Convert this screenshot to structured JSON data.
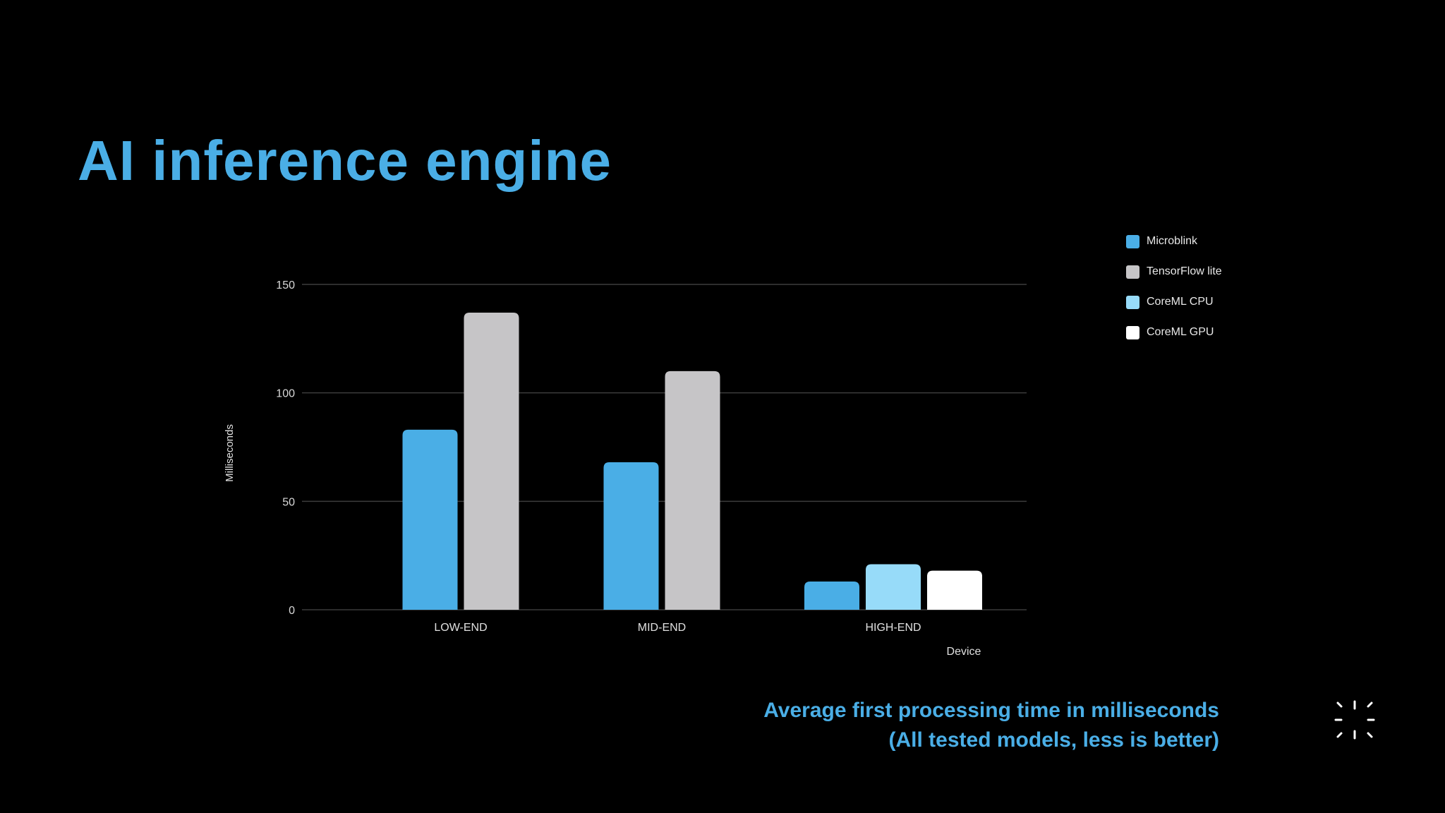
{
  "title": "AI inference engine",
  "caption": {
    "line1": "Average first processing time in milliseconds",
    "line2": "(All tested models, less is better)"
  },
  "colors": {
    "accent": "#4aaee6",
    "background": "#000000"
  },
  "logo_icon": "sparkle-burst-icon",
  "chart_data": {
    "type": "bar",
    "xlabel": "Device",
    "ylabel": "Milliseconds",
    "ylim": [
      0,
      150
    ],
    "yticks": [
      0,
      50,
      100,
      150
    ],
    "grid": true,
    "legend_position": "top-right",
    "categories": [
      "LOW-END",
      "MID-END",
      "HIGH-END"
    ],
    "series": [
      {
        "name": "Microblink",
        "color": "#4aaee6",
        "values": [
          83,
          68,
          13
        ]
      },
      {
        "name": "TensorFlow lite",
        "color": "#c6c5c7",
        "values": [
          137,
          110,
          null
        ]
      },
      {
        "name": "CoreML CPU",
        "color": "#97dbf9",
        "values": [
          null,
          null,
          21
        ]
      },
      {
        "name": "CoreML GPU",
        "color": "#ffffff",
        "values": [
          null,
          null,
          18
        ]
      }
    ]
  }
}
